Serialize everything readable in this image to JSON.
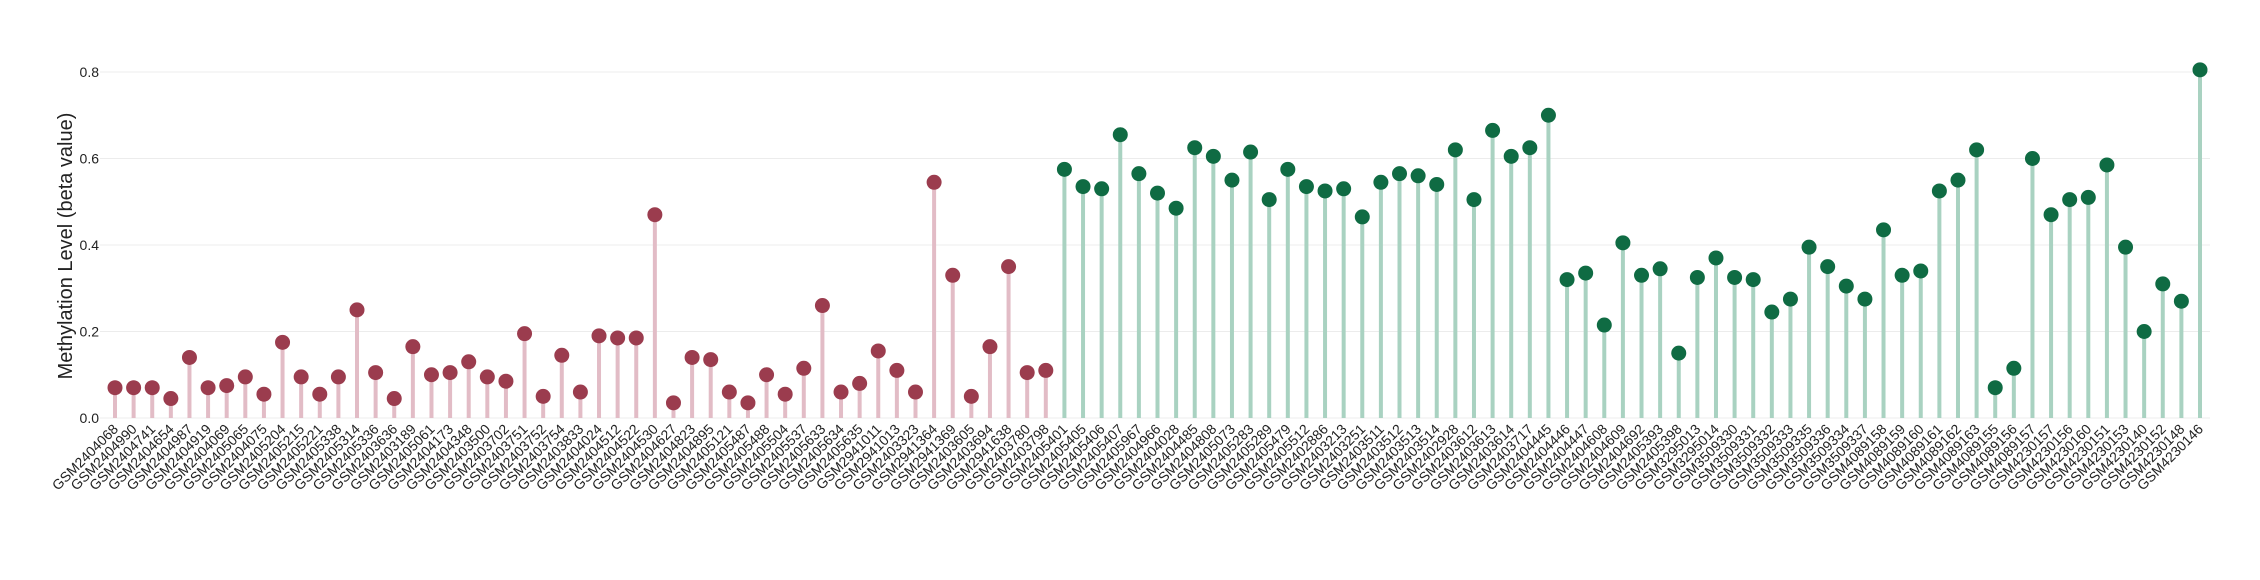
{
  "chart_data": {
    "type": "lollipop",
    "title": "",
    "xlabel": "",
    "ylabel": "Methylation Level (beta value)",
    "ylim": [
      0,
      0.8
    ],
    "yticks": [
      "0.0",
      "0.2",
      "0.4",
      "0.6",
      "0.8"
    ],
    "grid": true,
    "colors": {
      "group_a_stem": "#e2bcc6",
      "group_a_dot": "#9b3c4e",
      "group_b_stem": "#a9d2c1",
      "group_b_dot": "#0f6b43"
    },
    "points": [
      {
        "label": "GSM2404068",
        "value": 0.07,
        "group": "a"
      },
      {
        "label": "GSM2404990",
        "value": 0.07,
        "group": "a"
      },
      {
        "label": "GSM2404741",
        "value": 0.07,
        "group": "a"
      },
      {
        "label": "GSM2404654",
        "value": 0.045,
        "group": "a"
      },
      {
        "label": "GSM2404987",
        "value": 0.14,
        "group": "a"
      },
      {
        "label": "GSM2404919",
        "value": 0.07,
        "group": "a"
      },
      {
        "label": "GSM2404069",
        "value": 0.075,
        "group": "a"
      },
      {
        "label": "GSM2405065",
        "value": 0.095,
        "group": "a"
      },
      {
        "label": "GSM2404075",
        "value": 0.055,
        "group": "a"
      },
      {
        "label": "GSM2405204",
        "value": 0.175,
        "group": "a"
      },
      {
        "label": "GSM2405215",
        "value": 0.095,
        "group": "a"
      },
      {
        "label": "GSM2405221",
        "value": 0.055,
        "group": "a"
      },
      {
        "label": "GSM2405338",
        "value": 0.095,
        "group": "a"
      },
      {
        "label": "GSM2405314",
        "value": 0.25,
        "group": "a"
      },
      {
        "label": "GSM2405336",
        "value": 0.105,
        "group": "a"
      },
      {
        "label": "GSM2403636",
        "value": 0.045,
        "group": "a"
      },
      {
        "label": "GSM2403189",
        "value": 0.165,
        "group": "a"
      },
      {
        "label": "GSM2405061",
        "value": 0.1,
        "group": "a"
      },
      {
        "label": "GSM2404173",
        "value": 0.105,
        "group": "a"
      },
      {
        "label": "GSM2404348",
        "value": 0.13,
        "group": "a"
      },
      {
        "label": "GSM2403500",
        "value": 0.095,
        "group": "a"
      },
      {
        "label": "GSM2403702",
        "value": 0.085,
        "group": "a"
      },
      {
        "label": "GSM2403751",
        "value": 0.195,
        "group": "a"
      },
      {
        "label": "GSM2403752",
        "value": 0.05,
        "group": "a"
      },
      {
        "label": "GSM2403754",
        "value": 0.145,
        "group": "a"
      },
      {
        "label": "GSM2403833",
        "value": 0.06,
        "group": "a"
      },
      {
        "label": "GSM2404024",
        "value": 0.19,
        "group": "a"
      },
      {
        "label": "GSM2404512",
        "value": 0.185,
        "group": "a"
      },
      {
        "label": "GSM2404522",
        "value": 0.185,
        "group": "a"
      },
      {
        "label": "GSM2404530",
        "value": 0.47,
        "group": "a"
      },
      {
        "label": "GSM2404627",
        "value": 0.035,
        "group": "a"
      },
      {
        "label": "GSM2404823",
        "value": 0.14,
        "group": "a"
      },
      {
        "label": "GSM2404895",
        "value": 0.135,
        "group": "a"
      },
      {
        "label": "GSM2405121",
        "value": 0.06,
        "group": "a"
      },
      {
        "label": "GSM2405487",
        "value": 0.035,
        "group": "a"
      },
      {
        "label": "GSM2405488",
        "value": 0.1,
        "group": "a"
      },
      {
        "label": "GSM2405504",
        "value": 0.055,
        "group": "a"
      },
      {
        "label": "GSM2405537",
        "value": 0.115,
        "group": "a"
      },
      {
        "label": "GSM2405633",
        "value": 0.26,
        "group": "a"
      },
      {
        "label": "GSM2405634",
        "value": 0.06,
        "group": "a"
      },
      {
        "label": "GSM2405635",
        "value": 0.08,
        "group": "a"
      },
      {
        "label": "GSM2941011",
        "value": 0.155,
        "group": "a"
      },
      {
        "label": "GSM2941013",
        "value": 0.11,
        "group": "a"
      },
      {
        "label": "GSM2403323",
        "value": 0.06,
        "group": "a"
      },
      {
        "label": "GSM2941364",
        "value": 0.545,
        "group": "a"
      },
      {
        "label": "GSM2941369",
        "value": 0.33,
        "group": "a"
      },
      {
        "label": "GSM2403605",
        "value": 0.05,
        "group": "a"
      },
      {
        "label": "GSM2403694",
        "value": 0.165,
        "group": "a"
      },
      {
        "label": "GSM2941638",
        "value": 0.35,
        "group": "a"
      },
      {
        "label": "GSM2403780",
        "value": 0.105,
        "group": "a"
      },
      {
        "label": "GSM2403798",
        "value": 0.11,
        "group": "a"
      },
      {
        "label": "GSM2405401",
        "value": 0.575,
        "group": "b"
      },
      {
        "label": "GSM2405405",
        "value": 0.535,
        "group": "b"
      },
      {
        "label": "GSM2405406",
        "value": 0.53,
        "group": "b"
      },
      {
        "label": "GSM2405407",
        "value": 0.655,
        "group": "b"
      },
      {
        "label": "GSM2405967",
        "value": 0.565,
        "group": "b"
      },
      {
        "label": "GSM2404966",
        "value": 0.52,
        "group": "b"
      },
      {
        "label": "GSM2404028",
        "value": 0.485,
        "group": "b"
      },
      {
        "label": "GSM2404485",
        "value": 0.625,
        "group": "b"
      },
      {
        "label": "GSM2404808",
        "value": 0.605,
        "group": "b"
      },
      {
        "label": "GSM2405073",
        "value": 0.55,
        "group": "b"
      },
      {
        "label": "GSM2405283",
        "value": 0.615,
        "group": "b"
      },
      {
        "label": "GSM2405289",
        "value": 0.505,
        "group": "b"
      },
      {
        "label": "GSM2405479",
        "value": 0.575,
        "group": "b"
      },
      {
        "label": "GSM2405512",
        "value": 0.535,
        "group": "b"
      },
      {
        "label": "GSM2402886",
        "value": 0.525,
        "group": "b"
      },
      {
        "label": "GSM2403213",
        "value": 0.53,
        "group": "b"
      },
      {
        "label": "GSM2403251",
        "value": 0.465,
        "group": "b"
      },
      {
        "label": "GSM2403511",
        "value": 0.545,
        "group": "b"
      },
      {
        "label": "GSM2403512",
        "value": 0.565,
        "group": "b"
      },
      {
        "label": "GSM2403513",
        "value": 0.56,
        "group": "b"
      },
      {
        "label": "GSM2403514",
        "value": 0.54,
        "group": "b"
      },
      {
        "label": "GSM2402928",
        "value": 0.62,
        "group": "b"
      },
      {
        "label": "GSM2403612",
        "value": 0.505,
        "group": "b"
      },
      {
        "label": "GSM2403613",
        "value": 0.665,
        "group": "b"
      },
      {
        "label": "GSM2403614",
        "value": 0.605,
        "group": "b"
      },
      {
        "label": "GSM2403717",
        "value": 0.625,
        "group": "b"
      },
      {
        "label": "GSM2404445",
        "value": 0.7,
        "group": "b"
      },
      {
        "label": "GSM2404446",
        "value": 0.32,
        "group": "b"
      },
      {
        "label": "GSM2404447",
        "value": 0.335,
        "group": "b"
      },
      {
        "label": "GSM2404608",
        "value": 0.215,
        "group": "b"
      },
      {
        "label": "GSM2404609",
        "value": 0.405,
        "group": "b"
      },
      {
        "label": "GSM2404692",
        "value": 0.33,
        "group": "b"
      },
      {
        "label": "GSM2405393",
        "value": 0.345,
        "group": "b"
      },
      {
        "label": "GSM2405398",
        "value": 0.15,
        "group": "b"
      },
      {
        "label": "GSM3295013",
        "value": 0.325,
        "group": "b"
      },
      {
        "label": "GSM3295014",
        "value": 0.37,
        "group": "b"
      },
      {
        "label": "GSM3509330",
        "value": 0.325,
        "group": "b"
      },
      {
        "label": "GSM3509331",
        "value": 0.32,
        "group": "b"
      },
      {
        "label": "GSM3509332",
        "value": 0.245,
        "group": "b"
      },
      {
        "label": "GSM3509333",
        "value": 0.275,
        "group": "b"
      },
      {
        "label": "GSM3509335",
        "value": 0.395,
        "group": "b"
      },
      {
        "label": "GSM3509336",
        "value": 0.35,
        "group": "b"
      },
      {
        "label": "GSM3509334",
        "value": 0.305,
        "group": "b"
      },
      {
        "label": "GSM3509337",
        "value": 0.275,
        "group": "b"
      },
      {
        "label": "GSM4089158",
        "value": 0.435,
        "group": "b"
      },
      {
        "label": "GSM4089159",
        "value": 0.33,
        "group": "b"
      },
      {
        "label": "GSM4089160",
        "value": 0.34,
        "group": "b"
      },
      {
        "label": "GSM4089161",
        "value": 0.525,
        "group": "b"
      },
      {
        "label": "GSM4089162",
        "value": 0.55,
        "group": "b"
      },
      {
        "label": "GSM4089163",
        "value": 0.62,
        "group": "b"
      },
      {
        "label": "GSM4089155",
        "value": 0.07,
        "group": "b"
      },
      {
        "label": "GSM4089156",
        "value": 0.115,
        "group": "b"
      },
      {
        "label": "GSM4089157",
        "value": 0.6,
        "group": "b"
      },
      {
        "label": "GSM4230157",
        "value": 0.47,
        "group": "b"
      },
      {
        "label": "GSM4230156",
        "value": 0.505,
        "group": "b"
      },
      {
        "label": "GSM4230160",
        "value": 0.51,
        "group": "b"
      },
      {
        "label": "GSM4230151",
        "value": 0.585,
        "group": "b"
      },
      {
        "label": "GSM4230153",
        "value": 0.395,
        "group": "b"
      },
      {
        "label": "GSM4230140",
        "value": 0.2,
        "group": "b"
      },
      {
        "label": "GSM4230152",
        "value": 0.31,
        "group": "b"
      },
      {
        "label": "GSM4230148",
        "value": 0.27,
        "group": "b"
      },
      {
        "label": "GSM4230146",
        "value": 0.805,
        "group": "b"
      }
    ]
  }
}
